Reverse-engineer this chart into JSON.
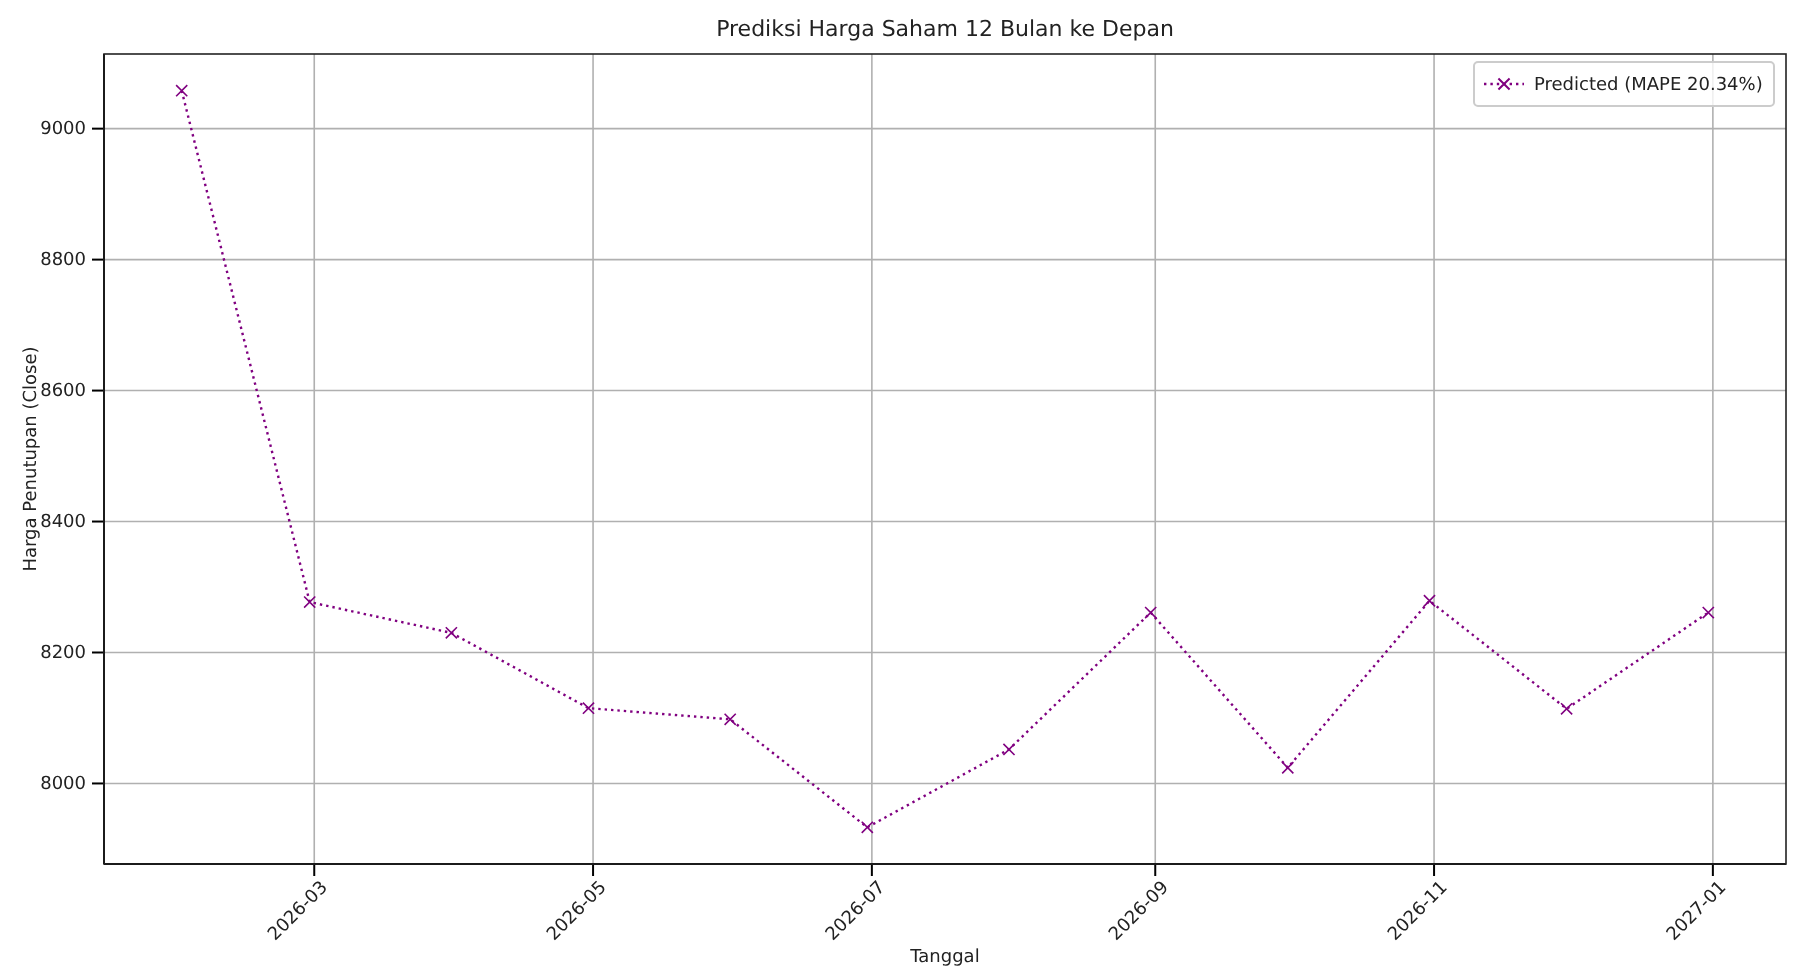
{
  "chart_data": {
    "type": "line",
    "title": "Prediksi Harga Saham 12 Bulan ke Depan",
    "xlabel": "Tanggal",
    "ylabel": "Harga Penutupan (Close)",
    "x": [
      "2026-01-31",
      "2026-02-28",
      "2026-03-31",
      "2026-04-30",
      "2026-05-31",
      "2026-06-30",
      "2026-07-31",
      "2026-08-31",
      "2026-09-30",
      "2026-10-31",
      "2026-11-30",
      "2026-12-31"
    ],
    "series": [
      {
        "name": "Predicted (MAPE 20.34%)",
        "color": "#800080",
        "values": [
          9058,
          8277,
          8230,
          8115,
          8098,
          7933,
          8052,
          8261,
          8024,
          8279,
          8114,
          8261
        ]
      }
    ],
    "xlim": [
      "2026-01-14",
      "2027-01-17"
    ],
    "xticks": [
      {
        "value": "2026-03-01",
        "label": "2026-03"
      },
      {
        "value": "2026-05-01",
        "label": "2026-05"
      },
      {
        "value": "2026-07-01",
        "label": "2026-07"
      },
      {
        "value": "2026-09-01",
        "label": "2026-09"
      },
      {
        "value": "2026-11-01",
        "label": "2026-11"
      },
      {
        "value": "2027-01-01",
        "label": "2027-01"
      }
    ],
    "ylim": [
      7877,
      9114
    ],
    "yticks": [
      8000,
      8200,
      8400,
      8600,
      8800,
      9000
    ],
    "grid": true,
    "legend": "top right",
    "marker": "cross",
    "line_style": "dotted"
  }
}
